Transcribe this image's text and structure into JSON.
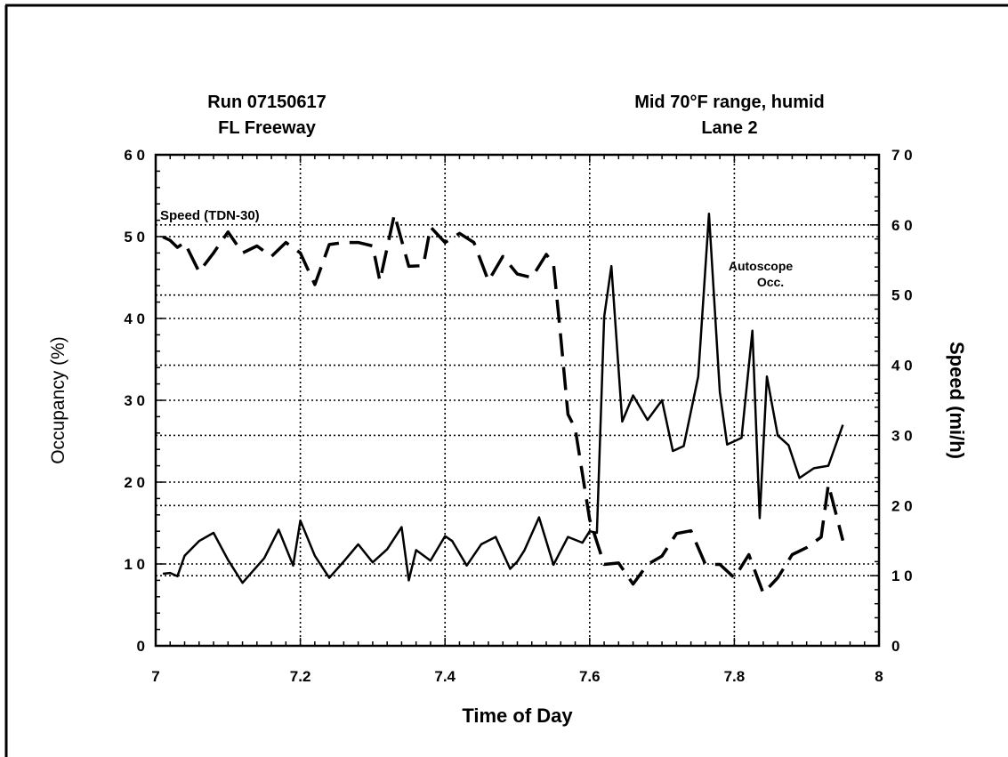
{
  "chart_data": {
    "type": "line",
    "title_left": [
      "Run 07150617",
      "FL Freeway"
    ],
    "title_right": [
      "Mid 70°F range, humid",
      "Lane 2"
    ],
    "xlabel": "Time of Day",
    "ylabel_left": "Occupancy (%)",
    "ylabel_right": "Speed (mi/h)",
    "xlim": [
      7,
      8
    ],
    "ylim_left": [
      0,
      60
    ],
    "ylim_right": [
      0,
      70
    ],
    "x_ticks": [
      "7",
      "7.2",
      "7.4",
      "7.6",
      "7.8",
      "8"
    ],
    "y_ticks_left": [
      "0",
      "1 0",
      "2 0",
      "3 0",
      "4 0",
      "5 0",
      "6 0"
    ],
    "y_ticks_right": [
      "0",
      "1 0",
      "2 0",
      "3 0",
      "4 0",
      "5 0",
      "6 0",
      "7 0"
    ],
    "grid": true,
    "annotations": {
      "speed_label": "Speed   (TDN-30)",
      "occ_label_line1": "Autoscope",
      "occ_label_line2": "Occ."
    },
    "series": [
      {
        "axis": "left",
        "style": "solid",
        "x": [
          7.01,
          7.02,
          7.03,
          7.04,
          7.06,
          7.08,
          7.1,
          7.12,
          7.14,
          7.15,
          7.17,
          7.19,
          7.2,
          7.22,
          7.24,
          7.26,
          7.28,
          7.3,
          7.32,
          7.34,
          7.35,
          7.36,
          7.38,
          7.4,
          7.41,
          7.43,
          7.45,
          7.47,
          7.49,
          7.5,
          7.51,
          7.53,
          7.55,
          7.57,
          7.59,
          7.6,
          7.61,
          7.62,
          7.63,
          7.645,
          7.66,
          7.68,
          7.7,
          7.715,
          7.73,
          7.75,
          7.765,
          7.78,
          7.79,
          7.8,
          7.81,
          7.825,
          7.835,
          7.845,
          7.86,
          7.875,
          7.89,
          7.91,
          7.93,
          7.95
        ],
        "y": [
          8.8,
          8.9,
          8.5,
          11,
          12.8,
          13.8,
          10.5,
          7.7,
          9.7,
          10.7,
          14.2,
          9.8,
          15.3,
          11,
          8.3,
          10.3,
          12.4,
          10.2,
          11.8,
          14.5,
          8,
          11.7,
          10.4,
          13.4,
          12.8,
          9.8,
          12.4,
          13.3,
          9.4,
          10.3,
          11.7,
          15.7,
          9.9,
          13.3,
          12.6,
          14,
          13.8,
          40.2,
          46.4,
          27.4,
          30.6,
          27.6,
          30,
          23.8,
          24.4,
          32.9,
          52.8,
          31,
          24.6,
          25,
          25.4,
          38.5,
          15.6,
          32.9,
          25.7,
          24.5,
          20.5,
          21.7,
          22,
          27
        ]
      },
      {
        "axis": "right",
        "style": "dashed",
        "x": [
          7.01,
          7.02,
          7.03,
          7.04,
          7.06,
          7.08,
          7.1,
          7.12,
          7.14,
          7.16,
          7.18,
          7.2,
          7.22,
          7.24,
          7.26,
          7.28,
          7.3,
          7.31,
          7.33,
          7.35,
          7.37,
          7.38,
          7.4,
          7.42,
          7.44,
          7.46,
          7.48,
          7.5,
          7.52,
          7.54,
          7.55,
          7.56,
          7.57,
          7.58,
          7.6,
          7.62,
          7.64,
          7.66,
          7.68,
          7.7,
          7.72,
          7.74,
          7.76,
          7.78,
          7.8,
          7.82,
          7.84,
          7.86,
          7.88,
          7.9,
          7.92,
          7.93,
          7.95
        ],
        "y": [
          58.3,
          57.8,
          56.8,
          57.5,
          53.3,
          56,
          59,
          56,
          57,
          55.5,
          57.5,
          56,
          51.5,
          57.2,
          57.5,
          57.5,
          57,
          52,
          61.5,
          54.1,
          54.2,
          59.7,
          57.5,
          58.8,
          57.5,
          52,
          55.5,
          53,
          52.5,
          55.8,
          54.5,
          44,
          33,
          31,
          18,
          11.6,
          11.8,
          8.8,
          11.6,
          12.8,
          16,
          16.4,
          11.6,
          11.6,
          9.7,
          13,
          7.5,
          9.7,
          13,
          14,
          15.5,
          23,
          15
        ]
      }
    ]
  }
}
